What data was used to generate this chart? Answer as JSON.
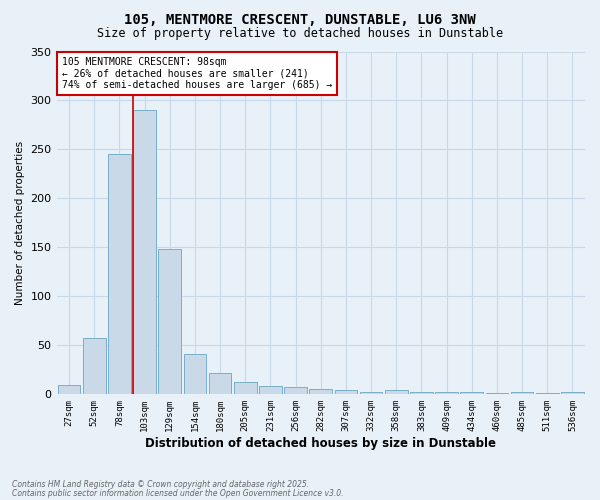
{
  "title_line1": "105, MENTMORE CRESCENT, DUNSTABLE, LU6 3NW",
  "title_line2": "Size of property relative to detached houses in Dunstable",
  "xlabel": "Distribution of detached houses by size in Dunstable",
  "ylabel": "Number of detached properties",
  "categories": [
    "27sqm",
    "52sqm",
    "78sqm",
    "103sqm",
    "129sqm",
    "154sqm",
    "180sqm",
    "205sqm",
    "231sqm",
    "256sqm",
    "282sqm",
    "307sqm",
    "332sqm",
    "358sqm",
    "383sqm",
    "409sqm",
    "434sqm",
    "460sqm",
    "485sqm",
    "511sqm",
    "536sqm"
  ],
  "values": [
    10,
    58,
    245,
    290,
    148,
    41,
    22,
    13,
    8,
    7,
    5,
    4,
    2,
    4,
    2,
    2,
    2,
    1,
    2,
    1,
    2
  ],
  "bar_color": "#c9d9e8",
  "bar_edge_color": "#7aaec8",
  "background_color": "#e8f0f8",
  "red_line_index": 3,
  "ylim": [
    0,
    350
  ],
  "yticks": [
    0,
    50,
    100,
    150,
    200,
    250,
    300,
    350
  ],
  "annotation_title": "105 MENTMORE CRESCENT: 98sqm",
  "annotation_line1": "← 26% of detached houses are smaller (241)",
  "annotation_line2": "74% of semi-detached houses are larger (685) →",
  "annotation_box_color": "#ffffff",
  "annotation_box_edge": "#cc0000",
  "footer_line1": "Contains HM Land Registry data © Crown copyright and database right 2025.",
  "footer_line2": "Contains public sector information licensed under the Open Government Licence v3.0.",
  "red_line_color": "#cc0000",
  "grid_color": "#c8d8e8"
}
